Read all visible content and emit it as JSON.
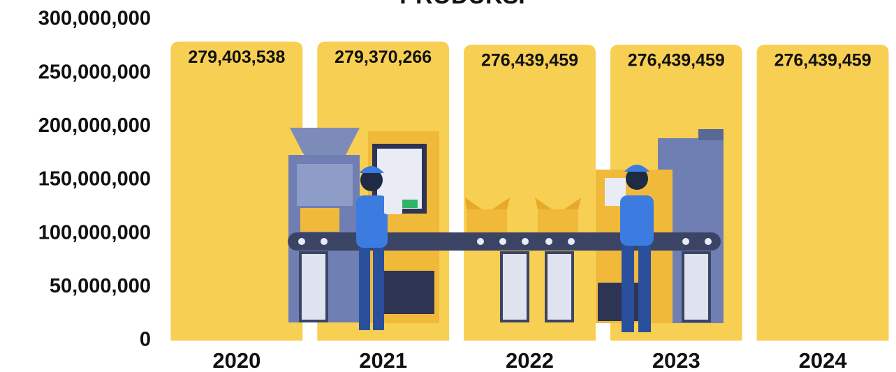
{
  "chart_data": {
    "type": "bar",
    "title": "PRODUKSI",
    "categories": [
      "2020",
      "2021",
      "2022",
      "2023",
      "2024"
    ],
    "values": [
      279403538,
      279370266,
      276439459,
      276439459,
      276439459
    ],
    "value_labels": [
      "279,403,538",
      "279,370,266",
      "276,439,459",
      "276,439,459",
      "276,439,459"
    ],
    "color": "#f7cf52",
    "ylim": [
      0,
      300000000
    ],
    "yticks": [
      0,
      {
        "value": 50000000,
        "label": "50,000,000"
      },
      {
        "value": 100000000,
        "label": "100,000,000"
      },
      {
        "value": 150000000,
        "label": "150,000,000"
      },
      {
        "value": 200000000,
        "label": "200,000,000"
      },
      {
        "value": 250000000,
        "label": "250,000,000"
      },
      {
        "value": 300000000,
        "label": "300,000,000"
      }
    ],
    "grid": false
  }
}
